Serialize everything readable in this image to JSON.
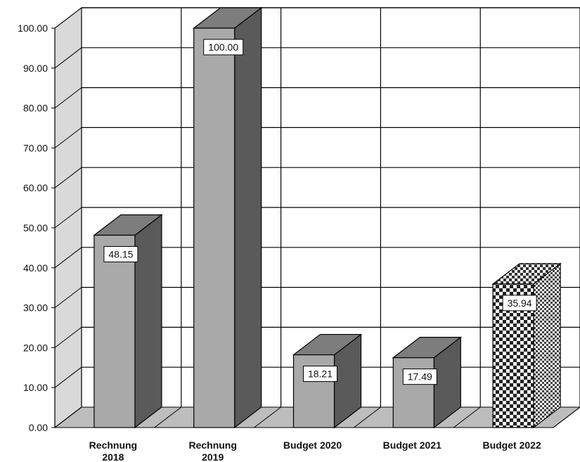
{
  "chart_data": {
    "type": "bar",
    "title": "",
    "xlabel": "",
    "ylabel": "",
    "categories": [
      [
        "Rechnung",
        "2018"
      ],
      [
        "Rechnung",
        "2019"
      ],
      [
        "Budget 2020"
      ],
      [
        "Budget 2021"
      ],
      [
        "Budget 2022"
      ]
    ],
    "values": [
      48.15,
      100.0,
      18.21,
      17.49,
      35.94
    ],
    "data_labels": [
      "48.15",
      "100.00",
      "18.21",
      "17.49",
      "35.94"
    ],
    "y_ticks": [
      "0.00",
      "10.00",
      "20.00",
      "30.00",
      "40.00",
      "50.00",
      "60.00",
      "70.00",
      "80.00",
      "90.00",
      "100.00"
    ],
    "ylim": [
      0,
      100
    ],
    "grid": true,
    "legend": false,
    "style": "3d-column",
    "bar_patterns": [
      "solid",
      "solid",
      "solid",
      "solid",
      "checkered"
    ],
    "colors": {
      "bar_front": "#a9a9a9",
      "bar_side": "#5a5a5a",
      "bar_top": "#7d7d7d",
      "back_wall": "#ffffff",
      "side_wall": "#d9d9d9",
      "floor": "#bdbdbd",
      "grid": "#000000",
      "label_box": "#ffffff"
    }
  }
}
